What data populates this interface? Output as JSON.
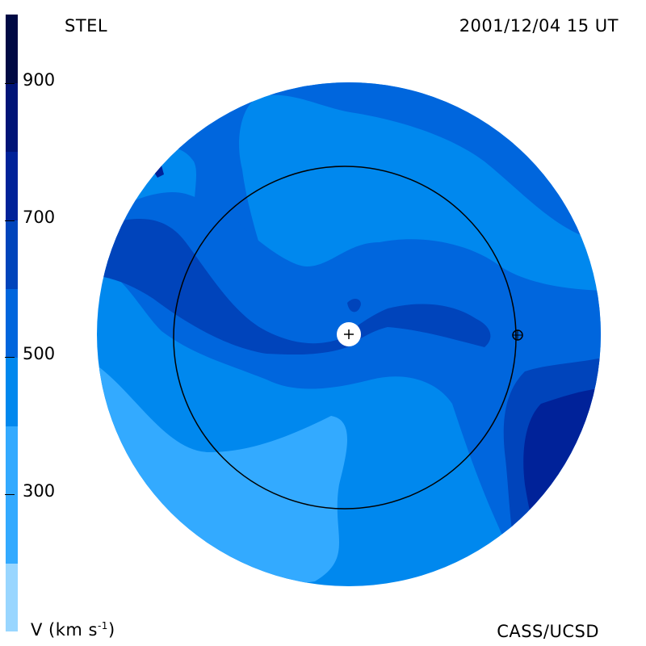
{
  "header": {
    "source": "STEL",
    "datetime": "2001/12/04 15 UT"
  },
  "footer": {
    "unit_prefix": "V (km s",
    "unit_exp": "-1",
    "unit_suffix": ")",
    "credit": "CASS/UCSD"
  },
  "colorbar": {
    "ticks": [
      {
        "label": "900",
        "value": 900
      },
      {
        "label": "700",
        "value": 700
      },
      {
        "label": "500",
        "value": 500
      },
      {
        "label": "300",
        "value": 300
      }
    ],
    "range": [
      100,
      1000
    ],
    "levels": [
      {
        "from": 100,
        "to": 200,
        "color": "#99d6ff"
      },
      {
        "from": 200,
        "to": 400,
        "color": "#33aaff"
      },
      {
        "from": 400,
        "to": 500,
        "color": "#0088ee"
      },
      {
        "from": 500,
        "to": 600,
        "color": "#0066dd"
      },
      {
        "from": 600,
        "to": 700,
        "color": "#0044bb"
      },
      {
        "from": 700,
        "to": 800,
        "color": "#002299"
      },
      {
        "from": 800,
        "to": 900,
        "color": "#001477"
      },
      {
        "from": 900,
        "to": 1000,
        "color": "#000a44"
      }
    ]
  },
  "map": {
    "quantity": "solar wind velocity",
    "markers": {
      "sun": "plus-marker",
      "earth": "circle-plus-marker"
    }
  }
}
